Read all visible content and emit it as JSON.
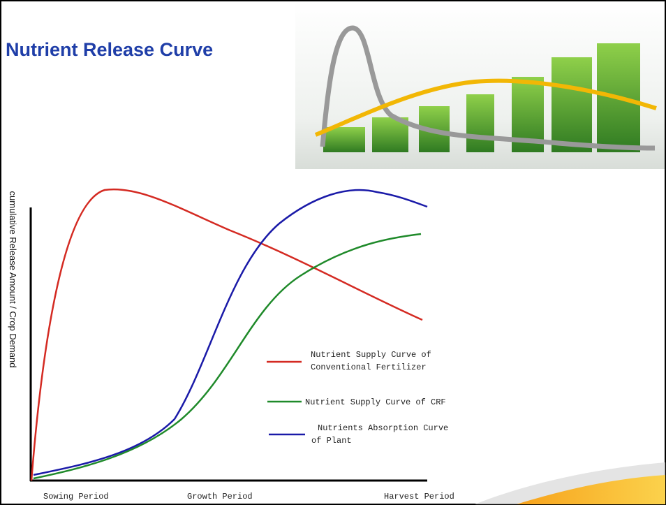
{
  "header": {
    "title": "Nutrient Release Curve"
  },
  "diagram": {
    "y_axis_label": "cumulative Release Amount / Crop Demand",
    "x_axis_labels": [
      "Sowing Period",
      "Growth Period",
      "Harvest Period"
    ],
    "legend": [
      {
        "lines": [
          "Nutrient Supply Curve of",
          "Conventional Fertilizer"
        ]
      },
      {
        "lines": [
          "Nutrient Supply Curve of CRF"
        ]
      },
      {
        "lines": [
          "Nutrients Absorption Curve",
          "of Plant"
        ]
      }
    ]
  }
}
